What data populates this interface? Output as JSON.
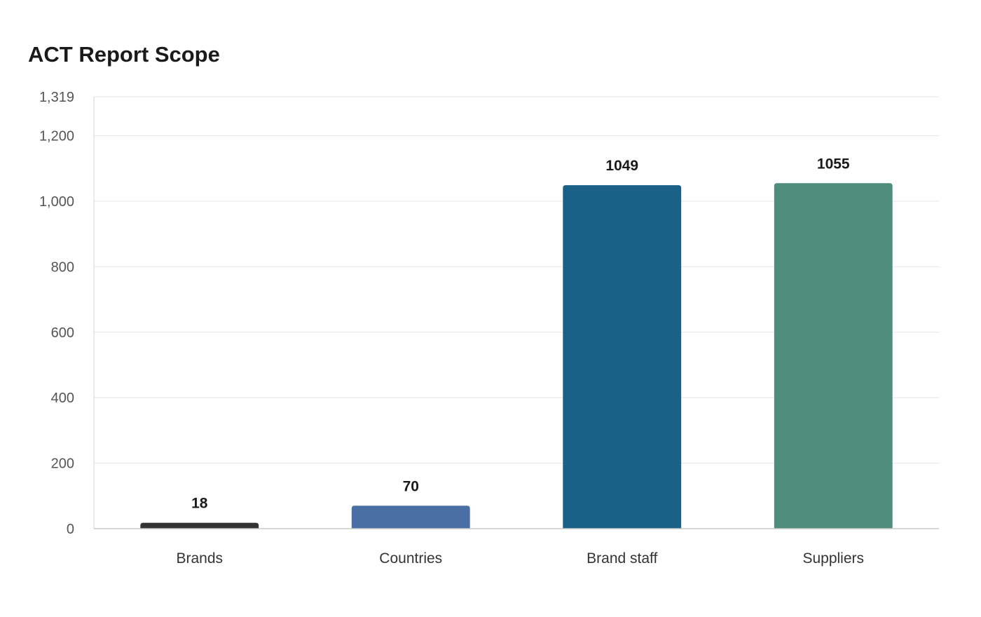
{
  "chart_data": {
    "type": "bar",
    "title": "ACT Report Scope",
    "xlabel": "",
    "ylabel": "",
    "categories": [
      "Brands",
      "Countries",
      "Brand staff",
      "Suppliers"
    ],
    "values": [
      18,
      70,
      1049,
      1055
    ],
    "data_labels": [
      "18",
      "70",
      "1049",
      "1055"
    ],
    "bar_colors": [
      "#333333",
      "#4a6fa5",
      "#1a6187",
      "#4e8c7b"
    ],
    "ylim": [
      0,
      1319
    ],
    "yticks": [
      0,
      200,
      400,
      600,
      800,
      1000,
      1200,
      1319
    ],
    "ytick_labels": [
      "0",
      "200",
      "400",
      "600",
      "800",
      "1,000",
      "1,200",
      "1,319"
    ],
    "grid": true,
    "legend": "none"
  }
}
